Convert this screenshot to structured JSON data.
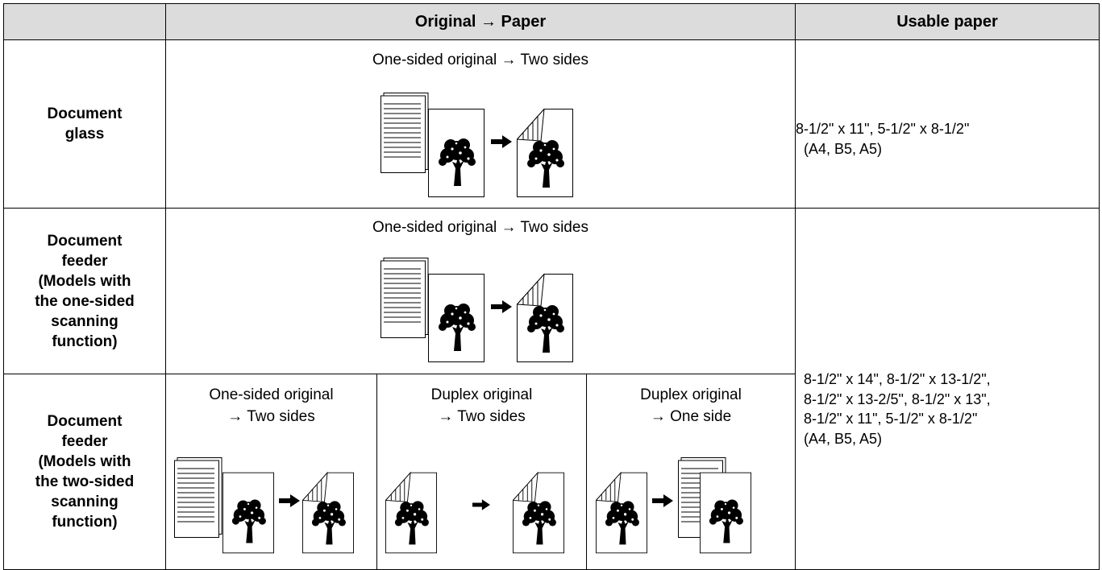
{
  "table": {
    "header": [
      "Original → Paper",
      "Usable paper"
    ],
    "rows": [
      {
        "label": [
          "Document",
          "glass"
        ],
        "modes": [
          [
            "One-sided original → Two sides"
          ]
        ]
      },
      {
        "label": [
          "Document",
          "feeder",
          "(Models with",
          "the one-sided",
          "scanning",
          "function)"
        ],
        "modes": [
          [
            "One-sided original → Two sides"
          ]
        ]
      },
      {
        "label": [
          "Document",
          "feeder",
          "(Models with",
          "the two-sided",
          "scanning",
          "function)"
        ],
        "modes": [
          [
            "One-sided original",
            "→ Two sides"
          ],
          [
            "Duplex original",
            "→ Two sides"
          ],
          [
            "Duplex original",
            "→ One side"
          ]
        ]
      }
    ],
    "paper": [
      [
        " 8-1/2\" x 11\", 5-1/2\" x 8-1/2\"",
        "(A4, B5, A5)"
      ],
      [
        "8-1/2\" x 14\", 8-1/2\" x 13-1/2\",",
        "8-1/2\" x 13-2/5\", 8-1/2\" x 13\",",
        "8-1/2\" x 11\", 5-1/2\" x 8-1/2\"",
        "(A4, B5, A5)"
      ]
    ]
  }
}
